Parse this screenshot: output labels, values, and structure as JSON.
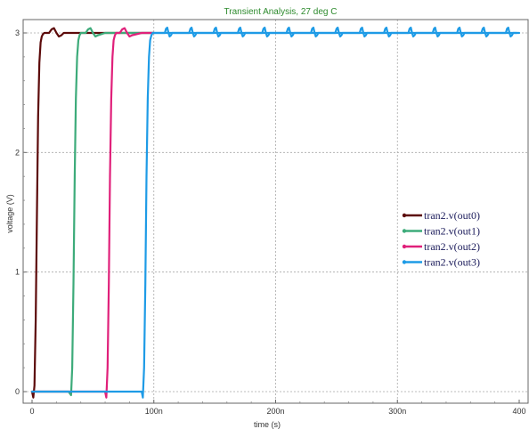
{
  "chart_data": {
    "type": "line",
    "title": "Transient Analysis, 27 deg C",
    "xlabel": "time (s)",
    "ylabel": "voltage (V)",
    "xlim": [
      0,
      400
    ],
    "ylim": [
      -0.1,
      3.1
    ],
    "x_unit": "n",
    "x_ticks": [
      0,
      100,
      200,
      300,
      400
    ],
    "x_tick_labels": [
      "0",
      "100n",
      "200n",
      "300n",
      "400"
    ],
    "y_ticks": [
      0,
      1,
      2,
      3
    ],
    "y_tick_labels": [
      "0",
      "1",
      "2",
      "3"
    ],
    "grid": true,
    "legend_position": "right",
    "series": [
      {
        "name": "tran2.v(out0)",
        "color": "#5c0a0a",
        "x": [
          0,
          1,
          2,
          3,
          4,
          5,
          6,
          7,
          8,
          9,
          10,
          12,
          14,
          16,
          18,
          20,
          22,
          24,
          26,
          30,
          40,
          50,
          60,
          70,
          80,
          90,
          100
        ],
        "y": [
          0,
          -0.05,
          0.05,
          0.6,
          1.5,
          2.3,
          2.75,
          2.92,
          2.97,
          2.99,
          3.0,
          3.0,
          3.0,
          3.03,
          3.04,
          3.0,
          2.97,
          2.98,
          3.0,
          3.0,
          3.0,
          3.0,
          3.0,
          3.0,
          3.0,
          3.0,
          3.0
        ]
      },
      {
        "name": "tran2.v(out1)",
        "color": "#3dab7a",
        "x": [
          0,
          10,
          20,
          30,
          32,
          33,
          34,
          35,
          36,
          37,
          38,
          39,
          40,
          42,
          44,
          46,
          48,
          50,
          52,
          54,
          60,
          70,
          80,
          90,
          100
        ],
        "y": [
          0,
          0,
          0,
          0,
          -0.03,
          0.2,
          0.9,
          1.8,
          2.45,
          2.8,
          2.94,
          2.98,
          3.0,
          3.0,
          3.0,
          3.03,
          3.04,
          3.0,
          2.97,
          2.98,
          3.0,
          3.0,
          3.0,
          3.0,
          3.0
        ]
      },
      {
        "name": "tran2.v(out2)",
        "color": "#e0207a",
        "x": [
          0,
          10,
          20,
          30,
          40,
          50,
          60,
          61,
          62,
          63,
          64,
          65,
          66,
          67,
          68,
          69,
          70,
          72,
          74,
          76,
          78,
          80,
          82,
          90,
          100
        ],
        "y": [
          0,
          0,
          0,
          0,
          0,
          0,
          0,
          -0.05,
          0.2,
          0.9,
          1.8,
          2.45,
          2.8,
          2.94,
          2.98,
          3.0,
          3.0,
          3.0,
          3.03,
          3.04,
          3.0,
          2.97,
          2.98,
          3.0,
          3.0
        ]
      },
      {
        "name": "tran2.v(out3)",
        "color": "#1e9be6",
        "x": [
          0,
          10,
          20,
          30,
          40,
          50,
          60,
          70,
          80,
          90,
          91,
          92,
          93,
          94,
          95,
          96,
          97,
          98,
          99,
          100,
          105,
          110,
          150,
          200,
          250,
          300,
          350,
          400
        ],
        "y": [
          0,
          0,
          0,
          0,
          0,
          0,
          0,
          0,
          0,
          0,
          -0.05,
          0.2,
          0.9,
          1.8,
          2.45,
          2.8,
          2.94,
          2.98,
          3.0,
          3.0,
          3.0,
          3.0,
          3.0,
          3.0,
          3.0,
          3.0,
          3.0,
          3.0
        ]
      }
    ]
  }
}
